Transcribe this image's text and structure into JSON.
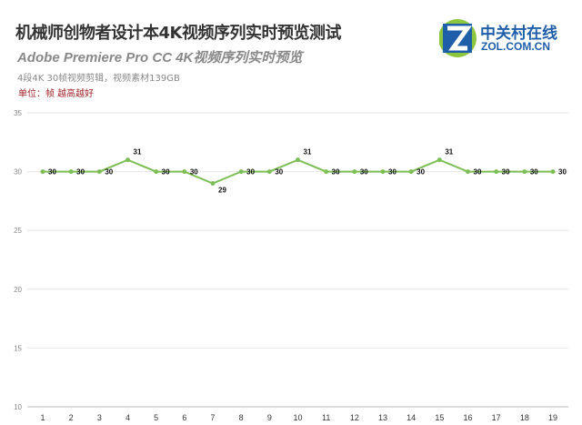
{
  "header": {
    "title": "机械师创物者设计本4K视频序列实时预览测试",
    "subtitle": "Adobe Premiere Pro CC  4K视频序列实时预览",
    "note": "4段4K 30帧视频剪辑，视频素材139GB",
    "unit": "单位：帧 越高越好"
  },
  "logo": {
    "cn": "中关村在线",
    "en": "ZOL.COM.CN"
  },
  "chart_data": {
    "type": "line",
    "x": [
      1,
      2,
      3,
      4,
      5,
      6,
      7,
      8,
      9,
      10,
      11,
      12,
      13,
      14,
      15,
      16,
      17,
      18,
      19
    ],
    "series": [
      {
        "values": [
          30,
          30,
          30,
          31,
          30,
          30,
          29,
          30,
          30,
          31,
          30,
          30,
          30,
          30,
          31,
          30,
          30,
          30,
          30
        ],
        "color": "#7dbf56"
      }
    ],
    "ylim": [
      10,
      35
    ],
    "yticks": [
      10,
      15,
      20,
      25,
      30,
      35
    ],
    "grid": true,
    "data_labels": true
  }
}
